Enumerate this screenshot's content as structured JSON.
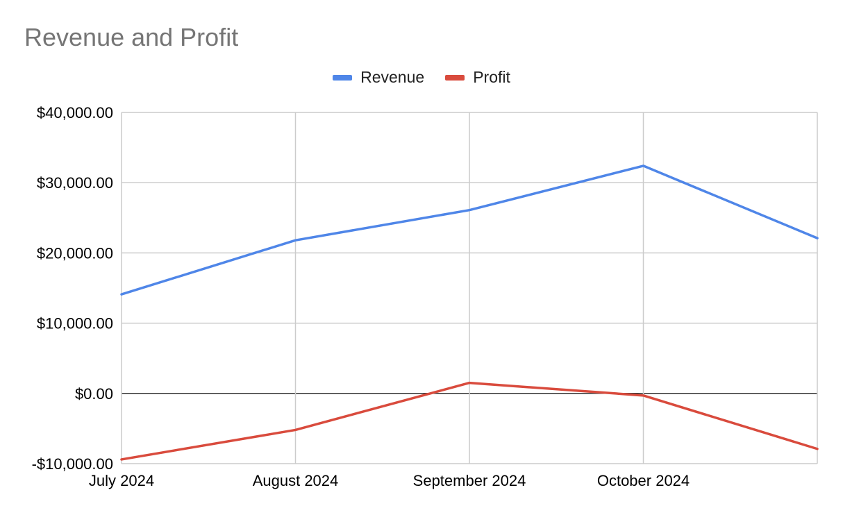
{
  "chart_data": {
    "type": "line",
    "title": "Revenue and Profit",
    "categories": [
      "July 2024",
      "August 2024",
      "September 2024",
      "October 2024",
      ""
    ],
    "series": [
      {
        "name": "Revenue",
        "color": "#4f86e8",
        "values": [
          14100,
          21800,
          26100,
          32400,
          22100
        ]
      },
      {
        "name": "Profit",
        "color": "#d94b3d",
        "values": [
          -9400,
          -5200,
          1500,
          -300,
          -7900
        ]
      }
    ],
    "y_ticks": [
      {
        "value": 40000,
        "label": "$40,000.00"
      },
      {
        "value": 30000,
        "label": "$30,000.00"
      },
      {
        "value": 20000,
        "label": "$20,000.00"
      },
      {
        "value": 10000,
        "label": "$10,000.00"
      },
      {
        "value": 0,
        "label": "$0.00"
      },
      {
        "value": -10000,
        "label": "-$10,000.00"
      }
    ],
    "ylim": [
      -10000,
      40000
    ],
    "xlabel": "",
    "ylabel": "",
    "grid": true,
    "legend_position": "top-center"
  }
}
